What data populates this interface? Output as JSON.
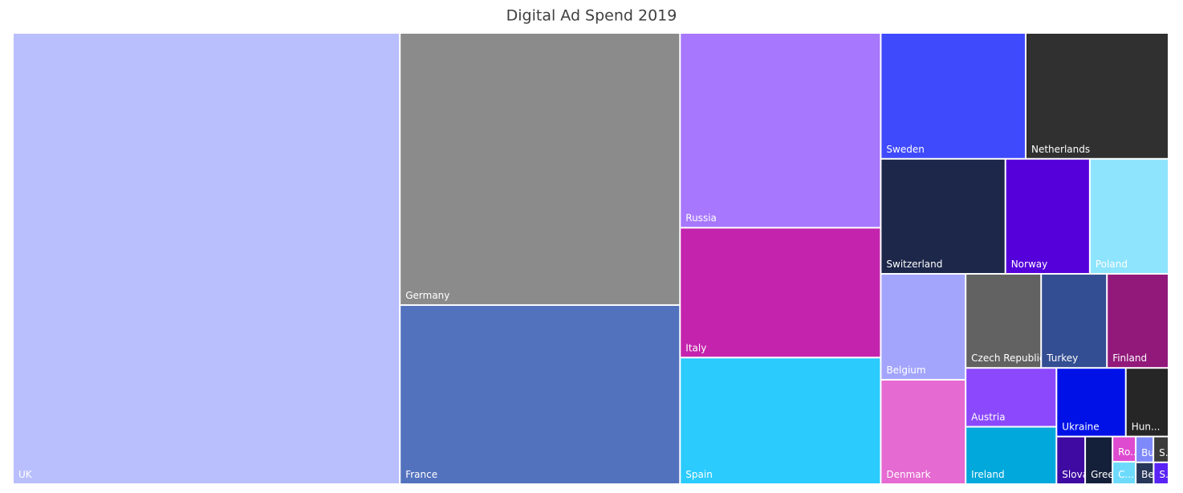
{
  "chart_data": {
    "type": "treemap",
    "title": "Digital Ad Spend 2019",
    "categories": [
      "UK",
      "Germany",
      "France",
      "Russia",
      "Italy",
      "Spain",
      "Sweden",
      "Netherlands",
      "Switzerland",
      "Norway",
      "Poland",
      "Belgium",
      "Denmark",
      "Czech Republic",
      "Turkey",
      "Finland",
      "Austria",
      "Ireland",
      "Ukraine",
      "Hun...",
      "Slovakia",
      "Greece",
      "Ro...",
      "C...",
      "Bu...",
      "S...",
      "Be...",
      "S..."
    ],
    "values": [
      268,
      117,
      77,
      60,
      40,
      39,
      28,
      27.6,
      22,
      14.9,
      13.9,
      13.8,
      13.6,
      10.9,
      9.5,
      8.9,
      8.2,
      8.0,
      7.3,
      4.5,
      2.1,
      2.0,
      0.9,
      0.8,
      0.7,
      0.6,
      0.6,
      0.5
    ],
    "colors": [
      "#b9bffd",
      "#8b8b8b",
      "#5372be",
      "#a777fe",
      "#c424ad",
      "#2bcbfd",
      "#3f4afd",
      "#303030",
      "#1c274a",
      "#5500da",
      "#8ee4fd",
      "#a3a5fd",
      "#e56ad1",
      "#626262",
      "#334e92",
      "#92197a",
      "#8b48fc",
      "#00a8dc",
      "#0011e8",
      "#262626",
      "#3e0aa2",
      "#14203a",
      "#de4bd0",
      "#6ddafb",
      "#7f8afa",
      "#3b3b3b",
      "#27375a",
      "#5a23f5"
    ]
  }
}
